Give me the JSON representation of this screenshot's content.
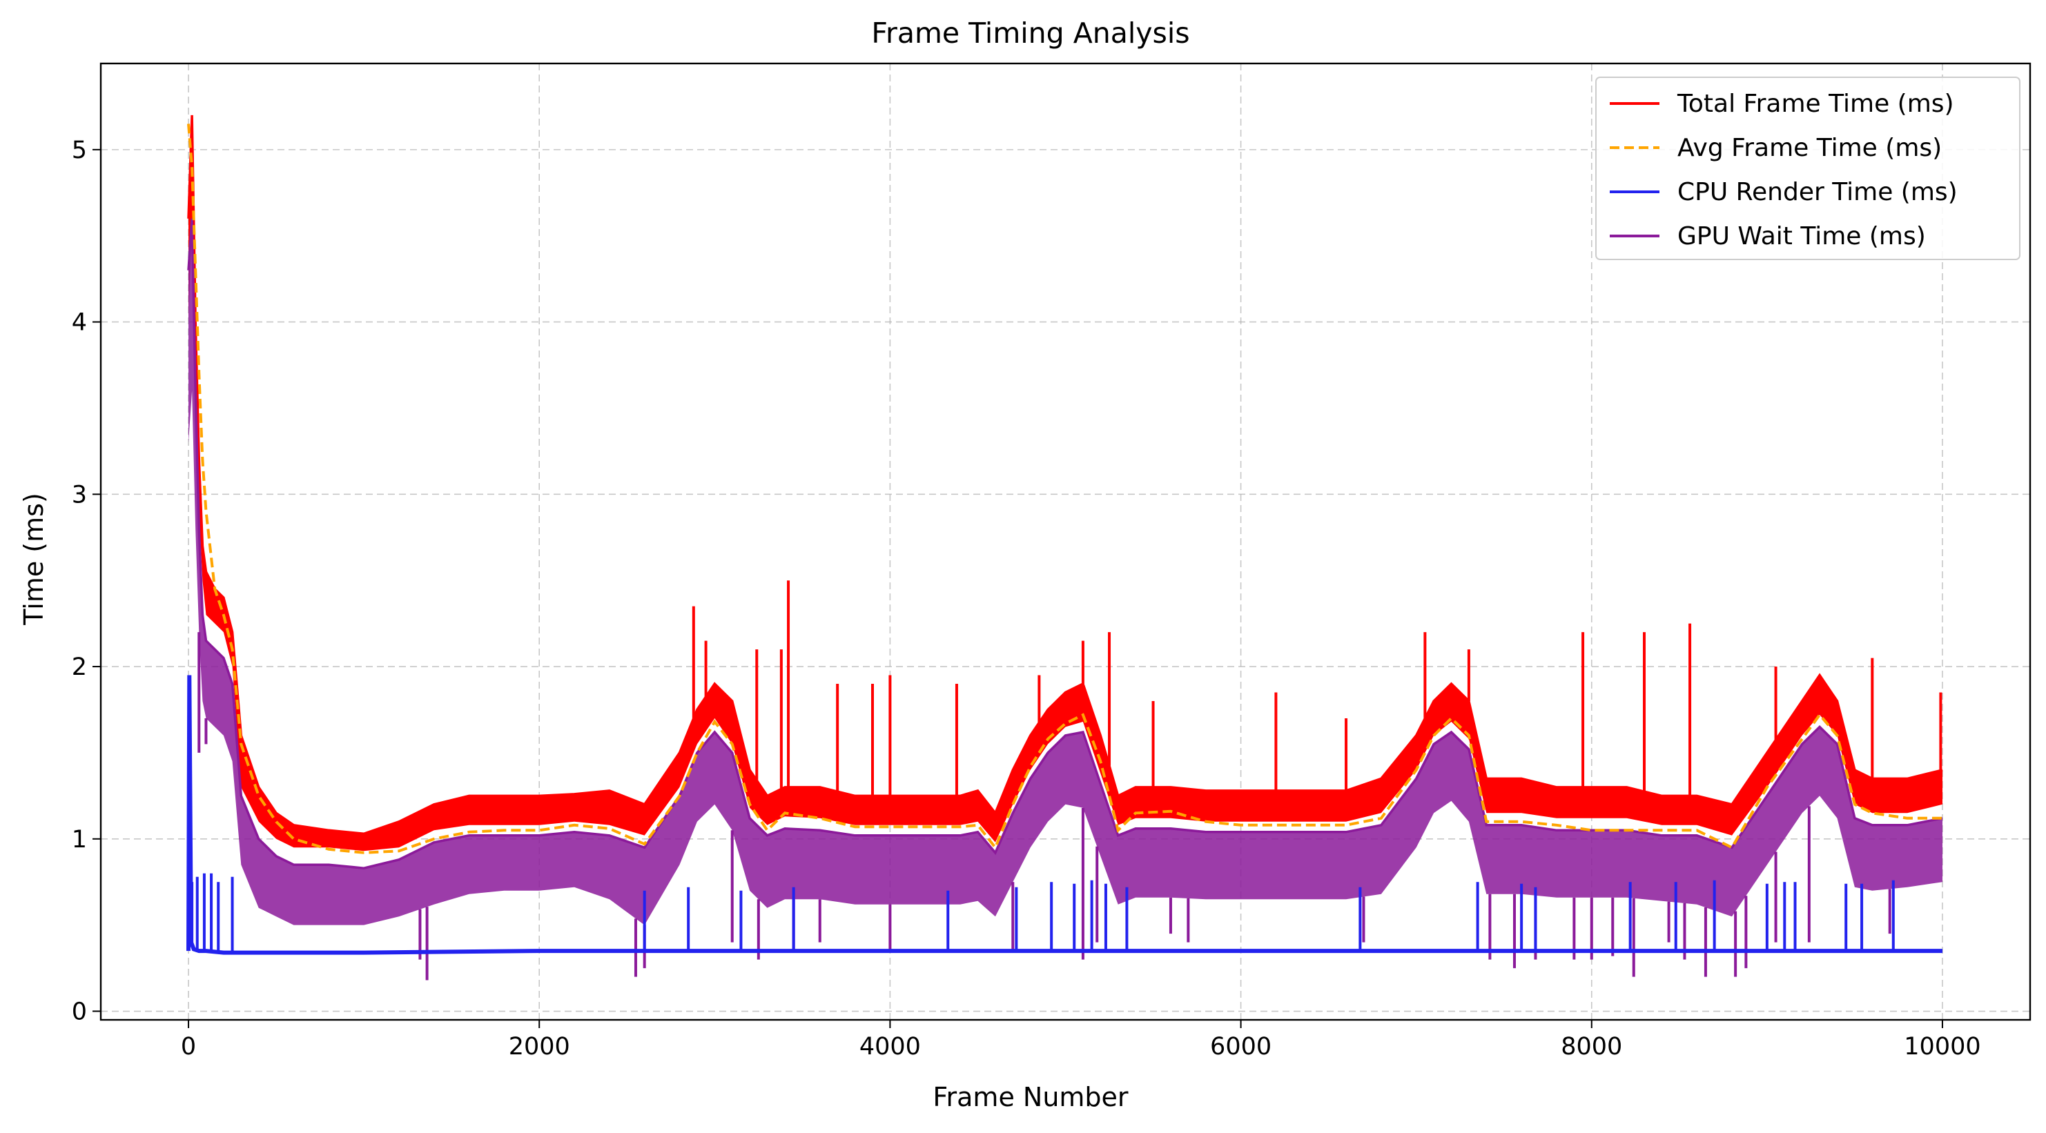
{
  "chart_data": {
    "type": "line",
    "title": "Frame Timing Analysis",
    "xlabel": "Frame Number",
    "ylabel": "Time (ms)",
    "xlim": [
      -500,
      10500
    ],
    "ylim": [
      -0.05,
      5.5
    ],
    "xticks": [
      0,
      2000,
      4000,
      6000,
      8000,
      10000
    ],
    "yticks": [
      0,
      1,
      2,
      3,
      4,
      5
    ],
    "grid": true,
    "legend_position": "top-right",
    "series": [
      {
        "name": "Total Frame Time (ms)",
        "color": "#ff0000",
        "style": "solid",
        "x": [
          0,
          20,
          40,
          60,
          80,
          100,
          150,
          200,
          250,
          300,
          400,
          500,
          600,
          800,
          1000,
          1200,
          1400,
          1600,
          1800,
          2000,
          2200,
          2400,
          2600,
          2800,
          2900,
          3000,
          3100,
          3200,
          3300,
          3400,
          3600,
          3800,
          4000,
          4200,
          4400,
          4500,
          4600,
          4700,
          4800,
          4900,
          5000,
          5100,
          5200,
          5300,
          5400,
          5600,
          5800,
          6000,
          6200,
          6400,
          6600,
          6800,
          7000,
          7100,
          7200,
          7300,
          7400,
          7600,
          7800,
          8000,
          8200,
          8400,
          8600,
          8800,
          9000,
          9200,
          9300,
          9400,
          9500,
          9600,
          9800,
          10000
        ],
        "values": [
          4.6,
          5.2,
          4.0,
          3.2,
          2.7,
          2.55,
          2.45,
          2.4,
          2.2,
          1.6,
          1.3,
          1.15,
          1.08,
          1.05,
          1.03,
          1.1,
          1.2,
          1.25,
          1.25,
          1.25,
          1.26,
          1.28,
          1.2,
          1.5,
          1.75,
          1.9,
          1.8,
          1.4,
          1.25,
          1.3,
          1.3,
          1.25,
          1.25,
          1.25,
          1.25,
          1.28,
          1.15,
          1.4,
          1.6,
          1.75,
          1.85,
          1.9,
          1.6,
          1.25,
          1.3,
          1.3,
          1.28,
          1.28,
          1.28,
          1.28,
          1.28,
          1.35,
          1.6,
          1.8,
          1.9,
          1.8,
          1.35,
          1.35,
          1.3,
          1.3,
          1.3,
          1.25,
          1.25,
          1.2,
          1.5,
          1.8,
          1.95,
          1.8,
          1.4,
          1.35,
          1.35,
          1.4
        ],
        "band_low": [
          4.0,
          4.6,
          3.5,
          2.9,
          2.5,
          2.3,
          2.25,
          2.2,
          2.0,
          1.3,
          1.1,
          1.0,
          0.95,
          0.95,
          0.93,
          0.95,
          1.05,
          1.08,
          1.08,
          1.08,
          1.1,
          1.08,
          1.02,
          1.3,
          1.55,
          1.7,
          1.55,
          1.18,
          1.08,
          1.13,
          1.12,
          1.08,
          1.08,
          1.08,
          1.08,
          1.1,
          0.98,
          1.2,
          1.4,
          1.55,
          1.65,
          1.68,
          1.38,
          1.08,
          1.12,
          1.12,
          1.1,
          1.1,
          1.1,
          1.1,
          1.1,
          1.15,
          1.4,
          1.6,
          1.68,
          1.58,
          1.15,
          1.15,
          1.12,
          1.12,
          1.12,
          1.08,
          1.08,
          1.02,
          1.3,
          1.6,
          1.72,
          1.6,
          1.2,
          1.15,
          1.15,
          1.2
        ],
        "spikes": [
          {
            "x": 2880,
            "value": 2.35
          },
          {
            "x": 2950,
            "value": 2.15
          },
          {
            "x": 3240,
            "value": 2.1
          },
          {
            "x": 3380,
            "value": 2.1
          },
          {
            "x": 3420,
            "value": 2.5
          },
          {
            "x": 3700,
            "value": 1.9
          },
          {
            "x": 3900,
            "value": 1.9
          },
          {
            "x": 4000,
            "value": 1.95
          },
          {
            "x": 4380,
            "value": 1.9
          },
          {
            "x": 4850,
            "value": 1.95
          },
          {
            "x": 5100,
            "value": 2.15
          },
          {
            "x": 5250,
            "value": 2.2
          },
          {
            "x": 5500,
            "value": 1.8
          },
          {
            "x": 6200,
            "value": 1.85
          },
          {
            "x": 6600,
            "value": 1.7
          },
          {
            "x": 7050,
            "value": 2.2
          },
          {
            "x": 7300,
            "value": 2.1
          },
          {
            "x": 7950,
            "value": 2.2
          },
          {
            "x": 8300,
            "value": 2.2
          },
          {
            "x": 8560,
            "value": 2.25
          },
          {
            "x": 9050,
            "value": 2.0
          },
          {
            "x": 9600,
            "value": 2.05
          },
          {
            "x": 9990,
            "value": 1.85
          }
        ]
      },
      {
        "name": "Avg Frame Time (ms)",
        "color": "#ffa500",
        "style": "dashed",
        "x": [
          0,
          20,
          40,
          60,
          80,
          100,
          150,
          200,
          250,
          300,
          400,
          500,
          600,
          800,
          1000,
          1200,
          1400,
          1600,
          1800,
          2000,
          2200,
          2400,
          2600,
          2800,
          2900,
          3000,
          3100,
          3200,
          3300,
          3400,
          3600,
          3800,
          4000,
          4200,
          4400,
          4500,
          4600,
          4700,
          4800,
          4900,
          5000,
          5100,
          5200,
          5300,
          5400,
          5600,
          5800,
          6000,
          6200,
          6400,
          6600,
          6800,
          7000,
          7100,
          7200,
          7300,
          7400,
          7600,
          7800,
          8000,
          8200,
          8400,
          8600,
          8800,
          9000,
          9200,
          9300,
          9400,
          9500,
          9600,
          9800,
          10000
        ],
        "values": [
          5.15,
          4.9,
          4.3,
          3.7,
          3.2,
          2.9,
          2.45,
          2.3,
          2.1,
          1.55,
          1.25,
          1.1,
          1.0,
          0.94,
          0.92,
          0.93,
          1.0,
          1.04,
          1.05,
          1.05,
          1.08,
          1.06,
          0.97,
          1.25,
          1.5,
          1.68,
          1.55,
          1.2,
          1.05,
          1.15,
          1.12,
          1.07,
          1.07,
          1.07,
          1.07,
          1.08,
          0.95,
          1.2,
          1.42,
          1.58,
          1.67,
          1.72,
          1.45,
          1.05,
          1.15,
          1.16,
          1.1,
          1.08,
          1.08,
          1.08,
          1.08,
          1.12,
          1.4,
          1.6,
          1.7,
          1.6,
          1.1,
          1.1,
          1.08,
          1.05,
          1.05,
          1.05,
          1.05,
          0.95,
          1.3,
          1.58,
          1.72,
          1.6,
          1.2,
          1.15,
          1.12,
          1.12
        ]
      },
      {
        "name": "CPU Render Time (ms)",
        "color": "#2222ee",
        "style": "solid",
        "x": [
          0,
          5,
          15,
          30,
          60,
          100,
          200,
          500,
          1000,
          2000,
          3000,
          4000,
          5000,
          6000,
          7000,
          8000,
          9000,
          10000
        ],
        "values": [
          0.35,
          1.95,
          0.4,
          0.36,
          0.35,
          0.35,
          0.34,
          0.34,
          0.34,
          0.35,
          0.35,
          0.35,
          0.35,
          0.35,
          0.35,
          0.35,
          0.35,
          0.35
        ],
        "spikes": [
          {
            "x": 20,
            "value": 0.75
          },
          {
            "x": 50,
            "value": 0.78
          },
          {
            "x": 90,
            "value": 0.8
          },
          {
            "x": 130,
            "value": 0.8
          },
          {
            "x": 170,
            "value": 0.75
          },
          {
            "x": 250,
            "value": 0.78
          },
          {
            "x": 2600,
            "value": 0.7
          },
          {
            "x": 2850,
            "value": 0.72
          },
          {
            "x": 3150,
            "value": 0.7
          },
          {
            "x": 3450,
            "value": 0.72
          },
          {
            "x": 4330,
            "value": 0.7
          },
          {
            "x": 4720,
            "value": 0.72
          },
          {
            "x": 4920,
            "value": 0.75
          },
          {
            "x": 5050,
            "value": 0.74
          },
          {
            "x": 5150,
            "value": 0.76
          },
          {
            "x": 5230,
            "value": 0.74
          },
          {
            "x": 5350,
            "value": 0.72
          },
          {
            "x": 6680,
            "value": 0.72
          },
          {
            "x": 7350,
            "value": 0.75
          },
          {
            "x": 7600,
            "value": 0.74
          },
          {
            "x": 7680,
            "value": 0.72
          },
          {
            "x": 8220,
            "value": 0.75
          },
          {
            "x": 8480,
            "value": 0.75
          },
          {
            "x": 8700,
            "value": 0.76
          },
          {
            "x": 9000,
            "value": 0.74
          },
          {
            "x": 9100,
            "value": 0.75
          },
          {
            "x": 9160,
            "value": 0.75
          },
          {
            "x": 9450,
            "value": 0.74
          },
          {
            "x": 9540,
            "value": 0.74
          },
          {
            "x": 9720,
            "value": 0.76
          }
        ]
      },
      {
        "name": "GPU Wait Time (ms)",
        "color": "#8b1a9a",
        "style": "solid",
        "x": [
          0,
          20,
          40,
          60,
          80,
          100,
          150,
          200,
          250,
          300,
          400,
          500,
          600,
          800,
          1000,
          1200,
          1400,
          1600,
          1800,
          2000,
          2200,
          2400,
          2600,
          2800,
          2900,
          3000,
          3100,
          3200,
          3300,
          3400,
          3600,
          3800,
          4000,
          4200,
          4400,
          4500,
          4600,
          4700,
          4800,
          4900,
          5000,
          5100,
          5200,
          5300,
          5400,
          5600,
          5800,
          6000,
          6200,
          6400,
          6600,
          6800,
          7000,
          7100,
          7200,
          7300,
          7400,
          7600,
          7800,
          8000,
          8200,
          8400,
          8600,
          8800,
          9000,
          9200,
          9300,
          9400,
          9500,
          9600,
          9800,
          10000
        ],
        "values": [
          4.3,
          4.6,
          3.6,
          2.8,
          2.3,
          2.15,
          2.1,
          2.05,
          1.9,
          1.25,
          1.0,
          0.9,
          0.85,
          0.85,
          0.83,
          0.88,
          0.98,
          1.02,
          1.02,
          1.02,
          1.04,
          1.02,
          0.95,
          1.25,
          1.5,
          1.62,
          1.5,
          1.12,
          1.02,
          1.06,
          1.05,
          1.02,
          1.02,
          1.02,
          1.02,
          1.04,
          0.92,
          1.15,
          1.35,
          1.5,
          1.6,
          1.62,
          1.32,
          1.02,
          1.06,
          1.06,
          1.04,
          1.04,
          1.04,
          1.04,
          1.04,
          1.08,
          1.35,
          1.55,
          1.62,
          1.52,
          1.08,
          1.08,
          1.05,
          1.05,
          1.05,
          1.02,
          1.02,
          0.95,
          1.25,
          1.55,
          1.65,
          1.55,
          1.12,
          1.08,
          1.08,
          1.12
        ],
        "band_low": [
          3.3,
          3.6,
          2.8,
          2.2,
          1.8,
          1.7,
          1.65,
          1.6,
          1.45,
          0.85,
          0.6,
          0.55,
          0.5,
          0.5,
          0.5,
          0.55,
          0.62,
          0.68,
          0.7,
          0.7,
          0.72,
          0.65,
          0.5,
          0.85,
          1.1,
          1.2,
          1.05,
          0.7,
          0.6,
          0.65,
          0.65,
          0.62,
          0.62,
          0.62,
          0.62,
          0.64,
          0.55,
          0.75,
          0.95,
          1.1,
          1.2,
          1.18,
          0.9,
          0.62,
          0.66,
          0.66,
          0.65,
          0.65,
          0.65,
          0.65,
          0.65,
          0.68,
          0.95,
          1.15,
          1.22,
          1.1,
          0.68,
          0.68,
          0.66,
          0.66,
          0.66,
          0.64,
          0.62,
          0.55,
          0.85,
          1.15,
          1.25,
          1.12,
          0.72,
          0.7,
          0.72,
          0.75
        ],
        "dips": [
          {
            "x": 60,
            "value": 1.5
          },
          {
            "x": 100,
            "value": 1.55
          },
          {
            "x": 1320,
            "value": 0.3
          },
          {
            "x": 1360,
            "value": 0.18
          },
          {
            "x": 2550,
            "value": 0.2
          },
          {
            "x": 2600,
            "value": 0.25
          },
          {
            "x": 3100,
            "value": 0.4
          },
          {
            "x": 3250,
            "value": 0.3
          },
          {
            "x": 3450,
            "value": 0.35
          },
          {
            "x": 3600,
            "value": 0.4
          },
          {
            "x": 4000,
            "value": 0.35
          },
          {
            "x": 4700,
            "value": 0.35
          },
          {
            "x": 5100,
            "value": 0.3
          },
          {
            "x": 5180,
            "value": 0.4
          },
          {
            "x": 5600,
            "value": 0.45
          },
          {
            "x": 5700,
            "value": 0.4
          },
          {
            "x": 6700,
            "value": 0.4
          },
          {
            "x": 7420,
            "value": 0.3
          },
          {
            "x": 7560,
            "value": 0.25
          },
          {
            "x": 7680,
            "value": 0.3
          },
          {
            "x": 7900,
            "value": 0.3
          },
          {
            "x": 8000,
            "value": 0.3
          },
          {
            "x": 8120,
            "value": 0.32
          },
          {
            "x": 8240,
            "value": 0.2
          },
          {
            "x": 8440,
            "value": 0.4
          },
          {
            "x": 8530,
            "value": 0.3
          },
          {
            "x": 8650,
            "value": 0.2
          },
          {
            "x": 8820,
            "value": 0.2
          },
          {
            "x": 8880,
            "value": 0.25
          },
          {
            "x": 9050,
            "value": 0.4
          },
          {
            "x": 9240,
            "value": 0.4
          },
          {
            "x": 9700,
            "value": 0.45
          }
        ]
      }
    ],
    "legend": [
      {
        "label": "Total Frame Time (ms)",
        "color": "#ff0000",
        "style": "solid"
      },
      {
        "label": "Avg Frame Time (ms)",
        "color": "#ffa500",
        "style": "dashed"
      },
      {
        "label": "CPU Render Time (ms)",
        "color": "#2222ee",
        "style": "solid"
      },
      {
        "label": "GPU Wait Time (ms)",
        "color": "#8b1a9a",
        "style": "solid"
      }
    ]
  }
}
